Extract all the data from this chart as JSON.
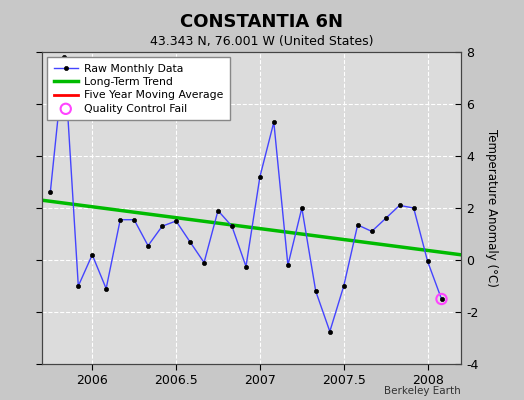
{
  "title": "CONSTANTIA 6N",
  "subtitle": "43.343 N, 76.001 W (United States)",
  "ylabel": "Temperature Anomaly (°C)",
  "attribution": "Berkeley Earth",
  "xlim": [
    2005.7,
    2008.2
  ],
  "ylim": [
    -4,
    8
  ],
  "yticks": [
    -4,
    -2,
    0,
    2,
    4,
    6,
    8
  ],
  "xticks": [
    2006,
    2006.5,
    2007,
    2007.5,
    2008
  ],
  "plot_bg": "#dcdcdc",
  "fig_bg": "#c8c8c8",
  "raw_x": [
    2005.75,
    2005.833,
    2005.917,
    2006.0,
    2006.083,
    2006.167,
    2006.25,
    2006.333,
    2006.417,
    2006.5,
    2006.583,
    2006.667,
    2006.75,
    2006.833,
    2006.917,
    2007.0,
    2007.083,
    2007.167,
    2007.25,
    2007.333,
    2007.417,
    2007.5,
    2007.583,
    2007.667,
    2007.75,
    2007.833,
    2007.917,
    2008.0,
    2008.083
  ],
  "raw_y": [
    2.6,
    7.8,
    -1.0,
    0.2,
    -1.1,
    1.55,
    1.55,
    0.55,
    1.3,
    1.5,
    0.7,
    -0.1,
    1.9,
    1.3,
    -0.25,
    3.2,
    5.3,
    -0.2,
    2.0,
    -1.2,
    -2.75,
    -1.0,
    1.35,
    1.1,
    1.6,
    2.1,
    2.0,
    -0.05,
    -1.5
  ],
  "qc_fail_x": [
    2008.083
  ],
  "qc_fail_y": [
    -1.5
  ],
  "trend_x": [
    2005.7,
    2008.2
  ],
  "trend_y": [
    2.3,
    0.2
  ],
  "raw_color": "#4444ff",
  "raw_marker_color": "#000000",
  "trend_color": "#00bb00",
  "moving_avg_color": "#ff0000",
  "qc_color": "#ff44ff"
}
